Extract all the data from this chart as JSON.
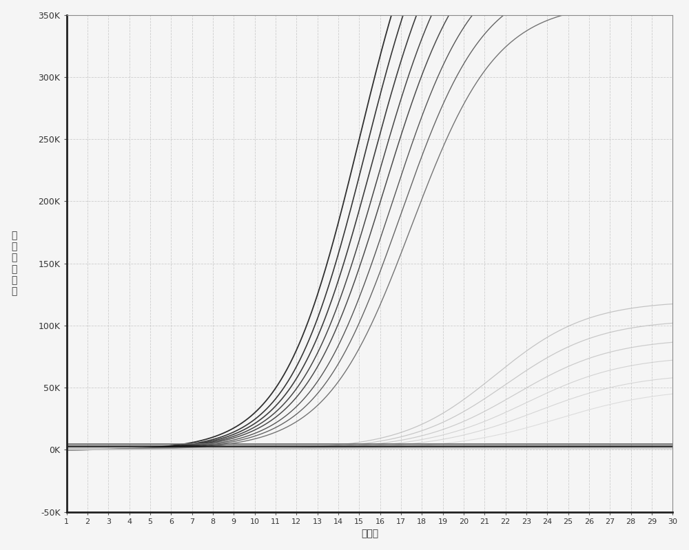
{
  "title": "",
  "xlabel": "循环数",
  "ylabel": "相\n对\n荧\n光\n强\n度",
  "xlim": [
    1,
    30
  ],
  "ylim": [
    -50000,
    350000
  ],
  "yticks": [
    -50000,
    0,
    50000,
    100000,
    150000,
    200000,
    250000,
    300000,
    350000
  ],
  "ytick_labels": [
    "-50K",
    "0K",
    "50K",
    "100K",
    "150K",
    "200K",
    "250K",
    "300K",
    "350K"
  ],
  "xticks": [
    1,
    2,
    3,
    4,
    5,
    6,
    7,
    8,
    9,
    10,
    11,
    12,
    13,
    14,
    15,
    16,
    17,
    18,
    19,
    20,
    21,
    22,
    23,
    24,
    25,
    26,
    27,
    28,
    29,
    30
  ],
  "background_color": "#f5f5f5",
  "grid_color": "#c8c8c8",
  "dark_curves": [
    {
      "Ct": 15.0,
      "plateau": 500000,
      "steepness": 0.55,
      "color": "#1a1a1a",
      "lw": 1.3
    },
    {
      "Ct": 15.3,
      "plateau": 480000,
      "steepness": 0.55,
      "color": "#222222",
      "lw": 1.2
    },
    {
      "Ct": 15.6,
      "plateau": 460000,
      "steepness": 0.54,
      "color": "#2a2a2a",
      "lw": 1.2
    },
    {
      "Ct": 15.9,
      "plateau": 440000,
      "steepness": 0.53,
      "color": "#333333",
      "lw": 1.1
    },
    {
      "Ct": 16.2,
      "plateau": 420000,
      "steepness": 0.52,
      "color": "#3a3a3a",
      "lw": 1.1
    },
    {
      "Ct": 16.6,
      "plateau": 400000,
      "steepness": 0.51,
      "color": "#444444",
      "lw": 1.0
    },
    {
      "Ct": 17.0,
      "plateau": 380000,
      "steepness": 0.5,
      "color": "#555555",
      "lw": 1.0
    },
    {
      "Ct": 17.5,
      "plateau": 360000,
      "steepness": 0.49,
      "color": "#666666",
      "lw": 1.0
    }
  ],
  "light_curves": [
    {
      "Ct": 21.5,
      "plateau": 120000,
      "steepness": 0.45,
      "color": "#bbbbbb",
      "lw": 0.9
    },
    {
      "Ct": 22.0,
      "plateau": 105000,
      "steepness": 0.44,
      "color": "#c0c0c0",
      "lw": 0.9
    },
    {
      "Ct": 22.5,
      "plateau": 90000,
      "steepness": 0.43,
      "color": "#c5c5c5",
      "lw": 0.9
    },
    {
      "Ct": 23.0,
      "plateau": 76000,
      "steepness": 0.42,
      "color": "#cccccc",
      "lw": 0.8
    },
    {
      "Ct": 23.5,
      "plateau": 62000,
      "steepness": 0.41,
      "color": "#d0d0d0",
      "lw": 0.8
    },
    {
      "Ct": 24.5,
      "plateau": 50000,
      "steepness": 0.4,
      "color": "#d8d8d8",
      "lw": 0.8
    }
  ],
  "flat_dark_lines": [
    {
      "y": 3000,
      "color": "#111111",
      "lw": 1.8
    },
    {
      "y": 4500,
      "color": "#555555",
      "lw": 0.9
    },
    {
      "y": 5500,
      "color": "#777777",
      "lw": 0.7
    }
  ],
  "flat_light_lines": [
    {
      "y": 2000,
      "color": "#aaaaaa",
      "lw": 0.7
    },
    {
      "y": 1500,
      "color": "#bbbbbb",
      "lw": 0.6
    },
    {
      "y": 1000,
      "color": "#cccccc",
      "lw": 0.6
    }
  ]
}
